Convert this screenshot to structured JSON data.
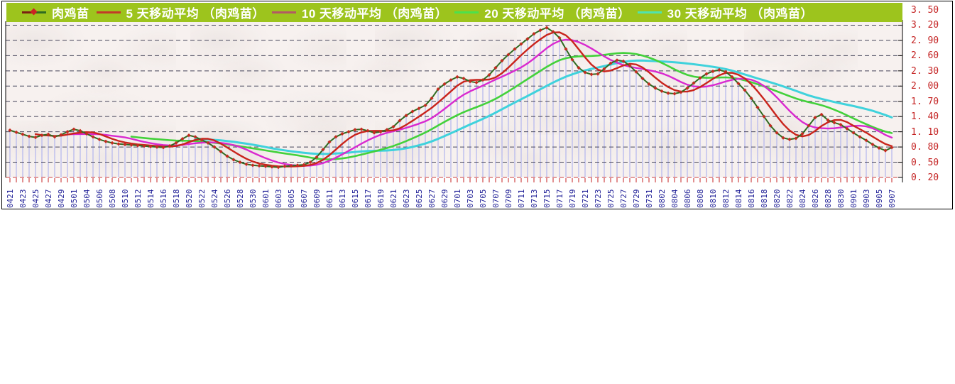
{
  "legend": {
    "background_color": "#9dc41d",
    "items": [
      {
        "label": "肉鸡苗",
        "swatch_colors": [
          "#7a2012",
          "#2f6b21"
        ],
        "marker_color": "#cc2222"
      },
      {
        "label": "5 天移动平均 （肉鸡苗）",
        "swatch_colors": [
          "#c23a28"
        ]
      },
      {
        "label": "10 天移动平均 （肉鸡苗）",
        "swatch_colors": [
          "#b25a64"
        ]
      },
      {
        "label": "20 天移动平均 （肉鸡苗）",
        "swatch_colors": [
          "#4ce14c"
        ]
      },
      {
        "label": "30 天移动平均 （肉鸡苗）",
        "swatch_colors": [
          "#4fe3ae"
        ]
      }
    ]
  },
  "chart_data": {
    "type": "line",
    "x_tick_labels": [
      "0421",
      "0423",
      "0425",
      "0427",
      "0429",
      "0501",
      "0504",
      "0506",
      "0508",
      "0510",
      "0512",
      "0514",
      "0516",
      "0518",
      "0520",
      "0522",
      "0524",
      "0526",
      "0528",
      "0530",
      "0601",
      "0603",
      "0605",
      "0607",
      "0609",
      "0611",
      "0613",
      "0615",
      "0617",
      "0619",
      "0621",
      "0623",
      "0625",
      "0627",
      "0629",
      "0701",
      "0703",
      "0705",
      "0707",
      "0709",
      "0711",
      "0713",
      "0715",
      "0717",
      "0719",
      "0721",
      "0723",
      "0725",
      "0727",
      "0729",
      "0731",
      "0802",
      "0804",
      "0806",
      "0808",
      "0810",
      "0812",
      "0814",
      "0816",
      "0818",
      "0820",
      "0822",
      "0824",
      "0826",
      "0828",
      "0830",
      "0901",
      "0903",
      "0905",
      "0907"
    ],
    "points_per_label": 2,
    "series": [
      {
        "name": "肉鸡苗",
        "style": "line-with-diamond-markers",
        "line_color": "#2f6b21",
        "marker_color": "#c42c20",
        "values": [
          1.13,
          1.09,
          1.05,
          1.01,
          0.99,
          1.03,
          1.05,
          1.0,
          1.04,
          1.1,
          1.15,
          1.12,
          1.06,
          1.0,
          0.95,
          0.91,
          0.88,
          0.86,
          0.85,
          0.84,
          0.83,
          0.82,
          0.81,
          0.8,
          0.79,
          0.82,
          0.88,
          0.96,
          1.03,
          1.0,
          0.94,
          0.88,
          0.8,
          0.71,
          0.62,
          0.55,
          0.5,
          0.46,
          0.44,
          0.43,
          0.42,
          0.41,
          0.4,
          0.42,
          0.43,
          0.44,
          0.45,
          0.5,
          0.6,
          0.75,
          0.9,
          1.0,
          1.06,
          1.1,
          1.14,
          1.15,
          1.12,
          1.08,
          1.1,
          1.14,
          1.2,
          1.32,
          1.42,
          1.5,
          1.56,
          1.62,
          1.76,
          1.94,
          2.04,
          2.12,
          2.18,
          2.15,
          2.09,
          2.07,
          2.12,
          2.22,
          2.36,
          2.5,
          2.62,
          2.73,
          2.83,
          2.93,
          3.03,
          3.1,
          3.15,
          3.07,
          2.95,
          2.73,
          2.52,
          2.36,
          2.27,
          2.23,
          2.24,
          2.34,
          2.45,
          2.51,
          2.49,
          2.4,
          2.28,
          2.15,
          2.04,
          1.96,
          1.9,
          1.86,
          1.85,
          1.88,
          1.96,
          2.06,
          2.16,
          2.24,
          2.29,
          2.32,
          2.28,
          2.18,
          2.05,
          1.92,
          1.76,
          1.58,
          1.4,
          1.22,
          1.08,
          0.98,
          0.95,
          0.97,
          1.06,
          1.22,
          1.38,
          1.44,
          1.33,
          1.28,
          1.24,
          1.16,
          1.08,
          1.0,
          0.93,
          0.85,
          0.78,
          0.73,
          0.79
        ]
      },
      {
        "name": "5 天移动平均 （肉鸡苗）",
        "style": "moving-average",
        "window": 5,
        "line_color": "#c9241c",
        "line_width": 2.4
      },
      {
        "name": "10 天移动平均 （肉鸡苗）",
        "style": "moving-average",
        "window": 10,
        "line_color": "#d929cf",
        "line_width": 2.4
      },
      {
        "name": "20 天移动平均 （肉鸡苗）",
        "style": "moving-average",
        "window": 20,
        "line_color": "#43d13b",
        "line_width": 2.6
      },
      {
        "name": "30 天移动平均 （肉鸡苗）",
        "style": "moving-average",
        "window": 30,
        "line_color": "#3fd2dc",
        "line_width": 3.0
      }
    ],
    "ylim": [
      0.2,
      3.5
    ],
    "y_tick_values": [
      3.5,
      3.2,
      2.9,
      2.6,
      2.3,
      2.0,
      1.7,
      1.4,
      1.1,
      0.8,
      0.5,
      0.2
    ],
    "y_tick_labels": [
      "3. 50",
      "3. 20",
      "2. 90",
      "2. 60",
      "2. 30",
      "2. 00",
      "1. 70",
      "1. 40",
      "1. 10",
      "0. 80",
      "0. 50",
      "0. 20"
    ],
    "legend_position": "top",
    "grid": "horizontal-dashed",
    "colors": {
      "y_label_color": "#c42222",
      "x_label_color": "#1e1e96",
      "tick_color": "#c42222",
      "grid_color": "#44445a",
      "bottom_grid_color": "#cc4040",
      "dropline_color": "#b7baee",
      "axis_frame_color": "#000000"
    }
  }
}
